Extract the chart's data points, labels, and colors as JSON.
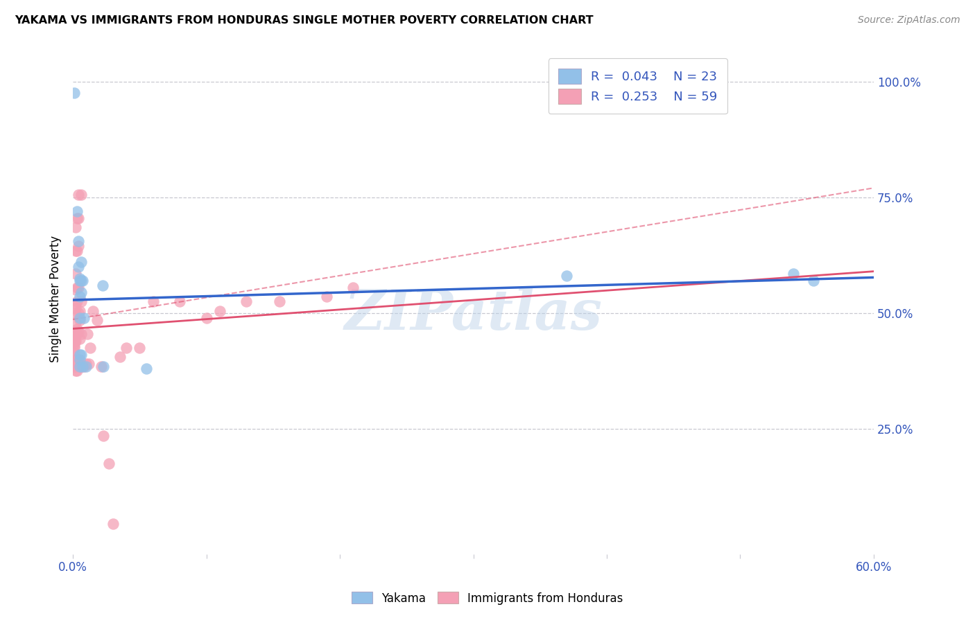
{
  "title": "YAKAMA VS IMMIGRANTS FROM HONDURAS SINGLE MOTHER POVERTY CORRELATION CHART",
  "source": "Source: ZipAtlas.com",
  "ylabel": "Single Mother Poverty",
  "ytick_labels": [
    "100.0%",
    "75.0%",
    "50.0%",
    "25.0%"
  ],
  "ytick_values": [
    1.0,
    0.75,
    0.5,
    0.25
  ],
  "xlim": [
    0.0,
    0.6
  ],
  "ylim": [
    -0.02,
    1.08
  ],
  "watermark": "ZIPatlas",
  "yakama_color": "#92c0e8",
  "honduras_color": "#f4a0b5",
  "trendline_yakama_color": "#3366cc",
  "trendline_honduras_color": "#e05070",
  "background_color": "#ffffff",
  "grid_color": "#c8c8d0",
  "axis_color": "#3355bb",
  "yakama_points": [
    [
      0.001,
      0.975
    ],
    [
      0.003,
      0.72
    ],
    [
      0.004,
      0.655
    ],
    [
      0.004,
      0.6
    ],
    [
      0.005,
      0.575
    ],
    [
      0.005,
      0.535
    ],
    [
      0.005,
      0.57
    ],
    [
      0.005,
      0.49
    ],
    [
      0.005,
      0.41
    ],
    [
      0.005,
      0.4
    ],
    [
      0.005,
      0.385
    ],
    [
      0.006,
      0.57
    ],
    [
      0.006,
      0.545
    ],
    [
      0.006,
      0.41
    ],
    [
      0.006,
      0.61
    ],
    [
      0.007,
      0.57
    ],
    [
      0.007,
      0.385
    ],
    [
      0.008,
      0.49
    ],
    [
      0.01,
      0.385
    ],
    [
      0.022,
      0.56
    ],
    [
      0.023,
      0.385
    ],
    [
      0.055,
      0.38
    ],
    [
      0.37,
      0.58
    ],
    [
      0.54,
      0.585
    ],
    [
      0.555,
      0.57
    ]
  ],
  "honduras_points": [
    [
      0.001,
      0.385
    ],
    [
      0.001,
      0.39
    ],
    [
      0.001,
      0.4
    ],
    [
      0.001,
      0.405
    ],
    [
      0.001,
      0.415
    ],
    [
      0.001,
      0.425
    ],
    [
      0.001,
      0.43
    ],
    [
      0.001,
      0.435
    ],
    [
      0.001,
      0.44
    ],
    [
      0.001,
      0.445
    ],
    [
      0.002,
      0.375
    ],
    [
      0.002,
      0.385
    ],
    [
      0.002,
      0.4
    ],
    [
      0.002,
      0.44
    ],
    [
      0.002,
      0.46
    ],
    [
      0.002,
      0.48
    ],
    [
      0.002,
      0.5
    ],
    [
      0.002,
      0.51
    ],
    [
      0.002,
      0.52
    ],
    [
      0.002,
      0.55
    ],
    [
      0.002,
      0.585
    ],
    [
      0.002,
      0.635
    ],
    [
      0.002,
      0.685
    ],
    [
      0.003,
      0.375
    ],
    [
      0.003,
      0.39
    ],
    [
      0.003,
      0.4
    ],
    [
      0.003,
      0.455
    ],
    [
      0.003,
      0.465
    ],
    [
      0.003,
      0.525
    ],
    [
      0.003,
      0.555
    ],
    [
      0.003,
      0.635
    ],
    [
      0.003,
      0.705
    ],
    [
      0.004,
      0.4
    ],
    [
      0.004,
      0.46
    ],
    [
      0.004,
      0.5
    ],
    [
      0.004,
      0.555
    ],
    [
      0.004,
      0.645
    ],
    [
      0.004,
      0.705
    ],
    [
      0.004,
      0.755
    ],
    [
      0.005,
      0.385
    ],
    [
      0.005,
      0.445
    ],
    [
      0.005,
      0.485
    ],
    [
      0.005,
      0.505
    ],
    [
      0.006,
      0.385
    ],
    [
      0.006,
      0.455
    ],
    [
      0.006,
      0.525
    ],
    [
      0.006,
      0.755
    ],
    [
      0.008,
      0.385
    ],
    [
      0.01,
      0.39
    ],
    [
      0.011,
      0.455
    ],
    [
      0.012,
      0.39
    ],
    [
      0.013,
      0.425
    ],
    [
      0.015,
      0.505
    ],
    [
      0.018,
      0.485
    ],
    [
      0.021,
      0.385
    ],
    [
      0.023,
      0.235
    ],
    [
      0.027,
      0.175
    ],
    [
      0.03,
      0.045
    ],
    [
      0.035,
      0.405
    ],
    [
      0.04,
      0.425
    ],
    [
      0.05,
      0.425
    ],
    [
      0.06,
      0.525
    ],
    [
      0.08,
      0.525
    ],
    [
      0.1,
      0.49
    ],
    [
      0.11,
      0.505
    ],
    [
      0.13,
      0.525
    ],
    [
      0.155,
      0.525
    ],
    [
      0.19,
      0.535
    ],
    [
      0.21,
      0.555
    ]
  ]
}
